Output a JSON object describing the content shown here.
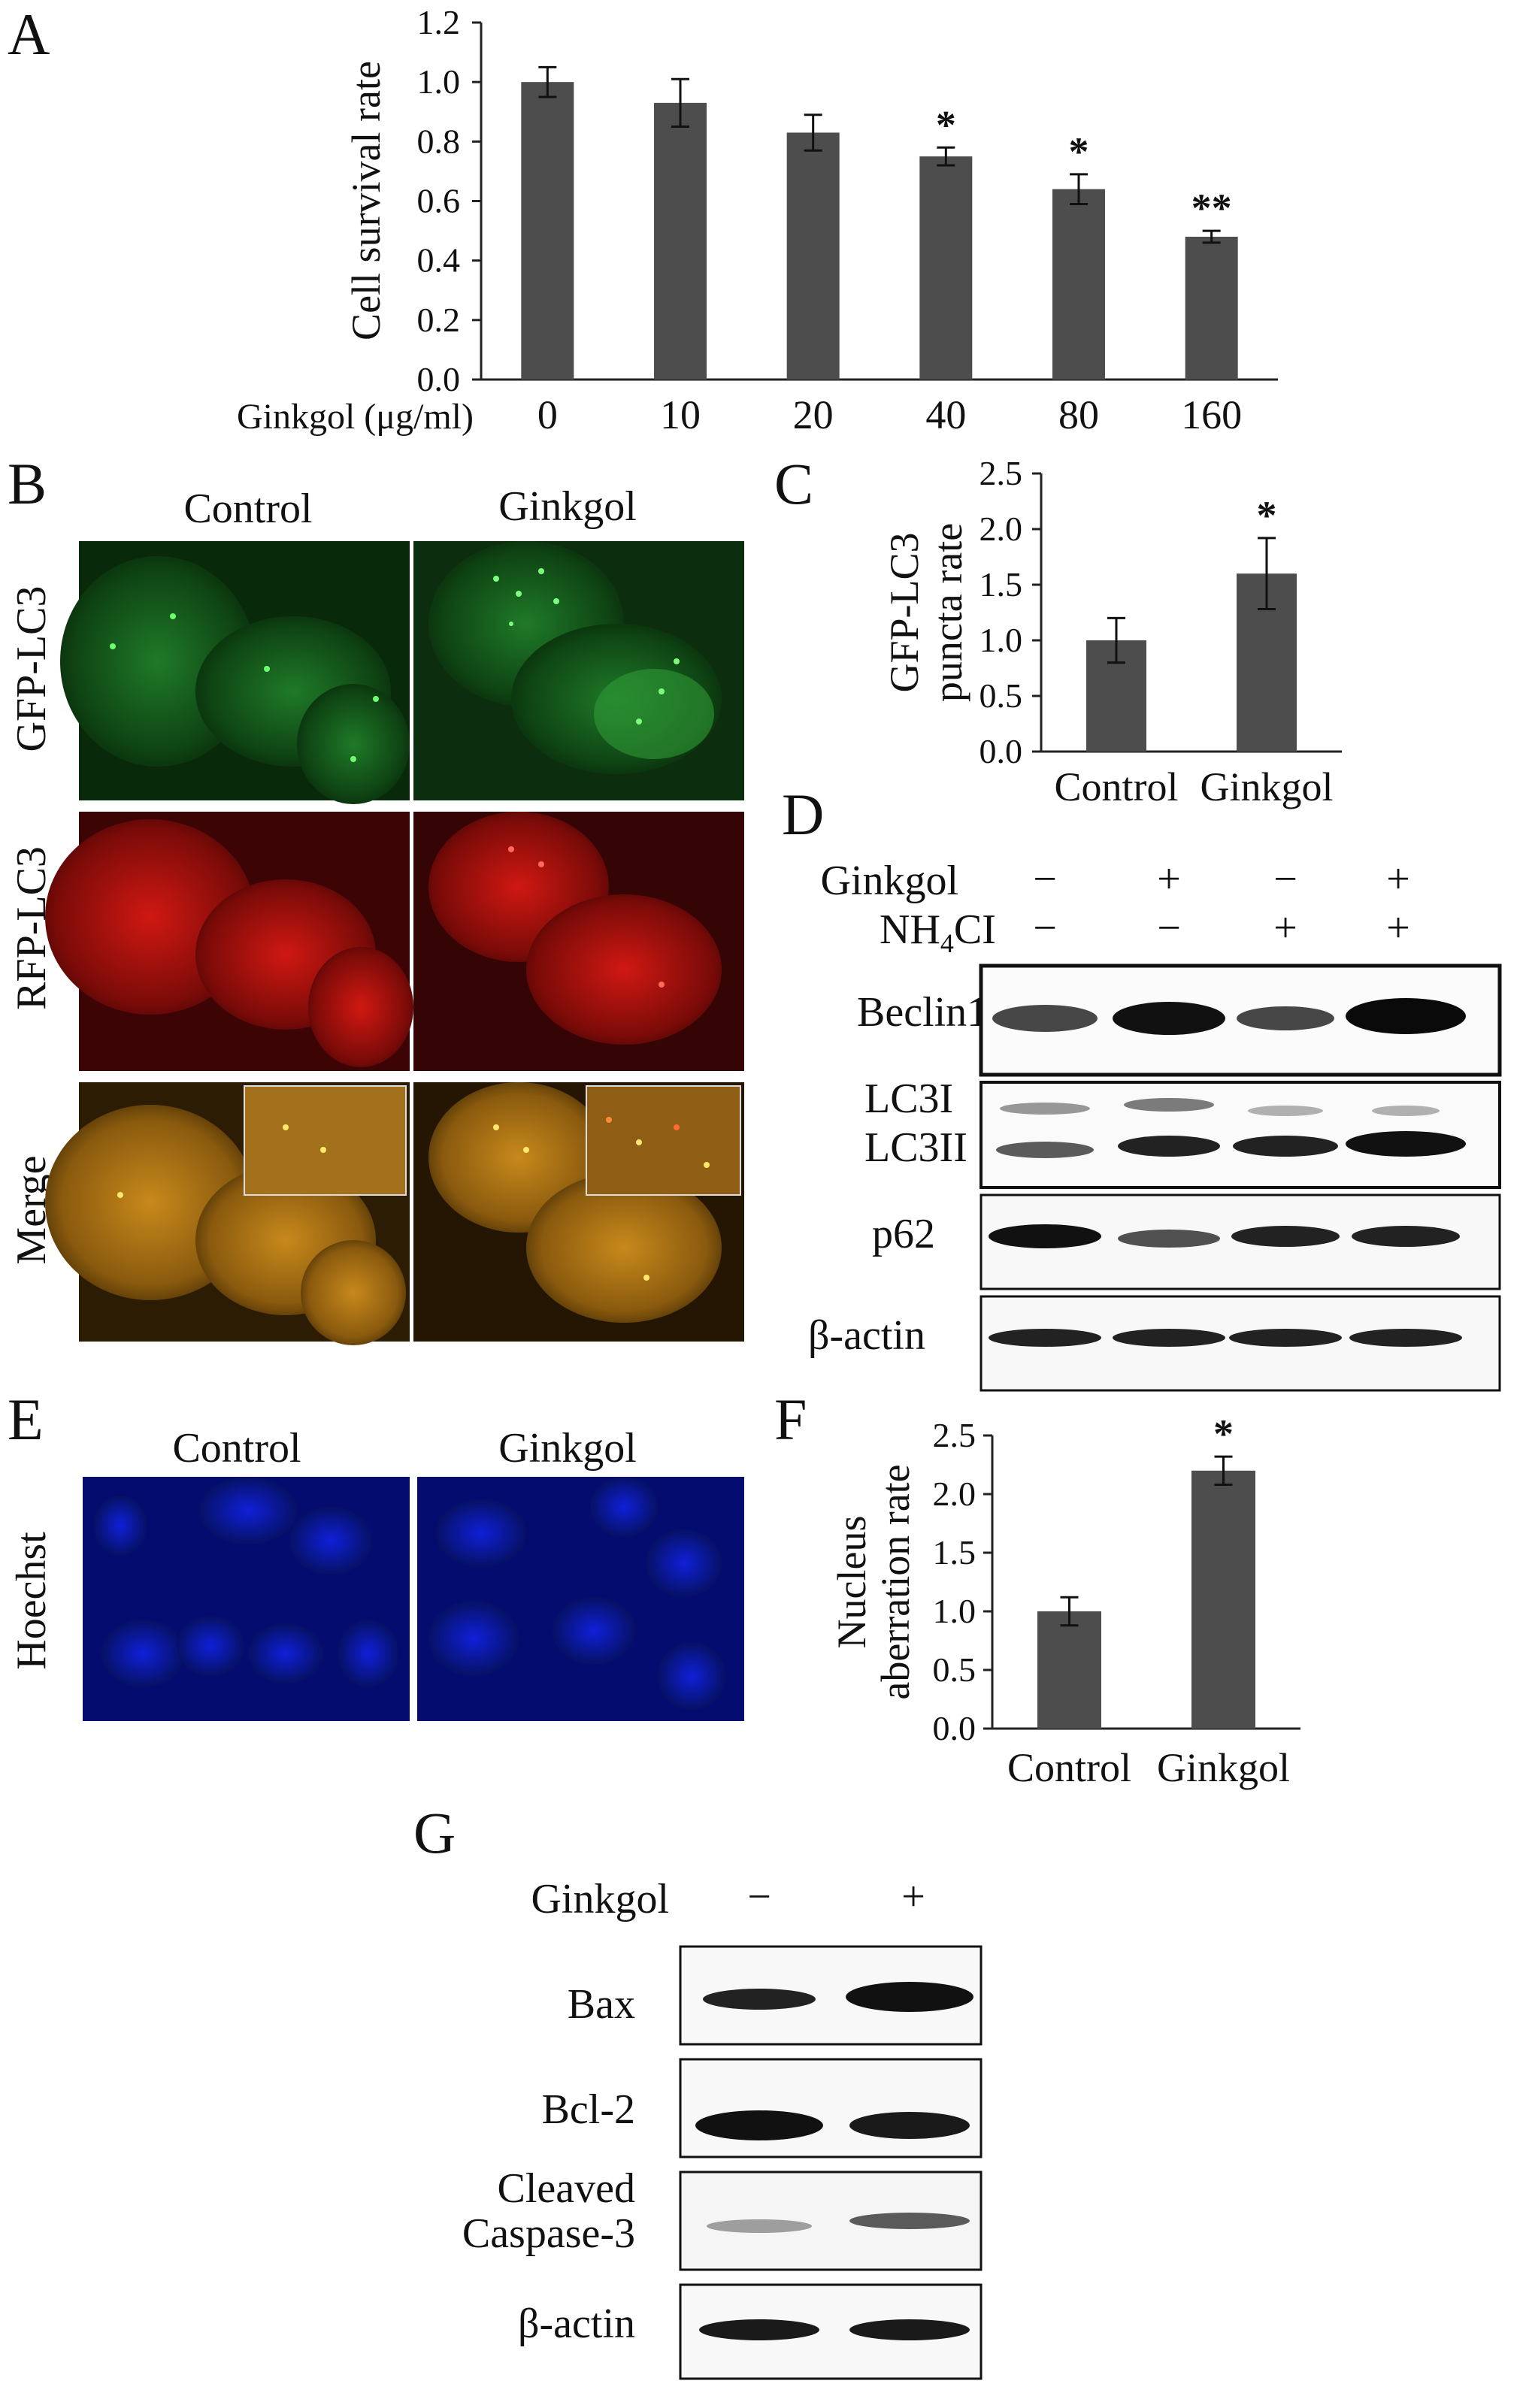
{
  "panels": {
    "A": "A",
    "B": "B",
    "C": "C",
    "D": "D",
    "E": "E",
    "F": "F",
    "G": "G"
  },
  "chart_data": [
    {
      "id": "A",
      "type": "bar",
      "xlabel": "Ginkgol (μg/ml)",
      "ylabel": "Cell survival rate",
      "categories": [
        "0",
        "10",
        "20",
        "40",
        "80",
        "160"
      ],
      "values": [
        1.0,
        0.93,
        0.83,
        0.75,
        0.64,
        0.48
      ],
      "errors": [
        0.05,
        0.08,
        0.06,
        0.03,
        0.05,
        0.02
      ],
      "significance": [
        "",
        "",
        "",
        "*",
        "*",
        "**"
      ],
      "ylim": [
        0,
        1.2
      ],
      "yticks": [
        "0.0",
        "0.2",
        "0.4",
        "0.6",
        "0.8",
        "1.0",
        "1.2"
      ],
      "bar_color": "#4d4d4d"
    },
    {
      "id": "C",
      "type": "bar",
      "ylabel": [
        "GFP-LC3",
        "puncta rate"
      ],
      "categories": [
        "Control",
        "Ginkgol"
      ],
      "values": [
        1.0,
        1.6
      ],
      "errors": [
        0.2,
        0.32
      ],
      "significance": [
        "",
        "*"
      ],
      "ylim": [
        0,
        2.5
      ],
      "yticks": [
        "0.0",
        "0.5",
        "1.0",
        "1.5",
        "2.0",
        "2.5"
      ],
      "bar_color": "#4d4d4d"
    },
    {
      "id": "F",
      "type": "bar",
      "ylabel": [
        "Nucleus",
        "aberration rate"
      ],
      "categories": [
        "Control",
        "Ginkgol"
      ],
      "values": [
        1.0,
        2.2
      ],
      "errors": [
        0.12,
        0.12
      ],
      "significance": [
        "",
        "*"
      ],
      "ylim": [
        0,
        2.5
      ],
      "yticks": [
        "0.0",
        "0.5",
        "1.0",
        "1.5",
        "2.0",
        "2.5"
      ],
      "bar_color": "#4d4d4d"
    }
  ],
  "panel_B": {
    "columns": [
      "Control",
      "Ginkgol"
    ],
    "rows": [
      "GFP-LC3",
      "RFP-LC3",
      "Merge"
    ]
  },
  "panel_D": {
    "conditions": [
      {
        "label": "Ginkgol",
        "values": [
          "−",
          "+",
          "−",
          "+"
        ]
      },
      {
        "label": "NH",
        "sub": "4",
        "label_tail": "CI",
        "values": [
          "−",
          "−",
          "+",
          "+"
        ]
      }
    ],
    "blots": [
      "Beclin1",
      [
        "LC3I",
        "LC3II"
      ],
      "p62",
      "β-actin"
    ]
  },
  "panel_E": {
    "columns": [
      "Control",
      "Ginkgol"
    ],
    "row": "Hoechst"
  },
  "panel_G": {
    "condition": {
      "label": "Ginkgol",
      "values": [
        "−",
        "+"
      ]
    },
    "blots": [
      "Bax",
      "Bcl-2",
      [
        "Cleaved",
        "Caspase-3"
      ],
      "β-actin"
    ]
  }
}
